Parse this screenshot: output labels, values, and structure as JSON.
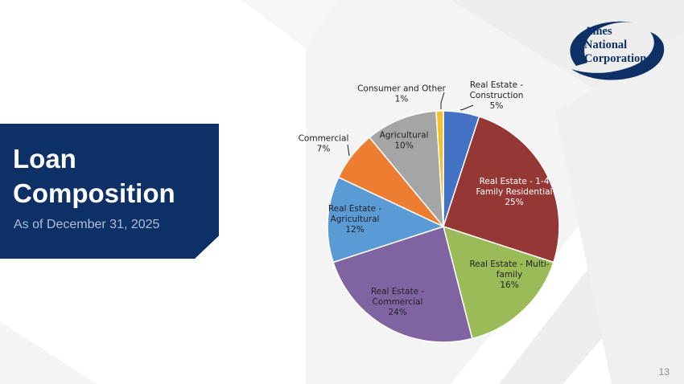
{
  "title": {
    "line1": "Loan",
    "line2": "Composition",
    "subtitle": "As of December 31, 2025"
  },
  "logo": {
    "line1": "Ames",
    "line2": "National",
    "line3": "Corporation",
    "color": "#0d3166"
  },
  "page_number": "13",
  "chart_data": {
    "type": "pie",
    "title": "",
    "start_angle_deg": 0,
    "direction": "clockwise",
    "slices": [
      {
        "label": "Real Estate - Construction",
        "label_lines": [
          "Real Estate -",
          "Construction",
          "5%"
        ],
        "value": 5,
        "display": "5%",
        "color": "#4472c4",
        "label_color": "#222222",
        "label_position": "outside"
      },
      {
        "label": "Real Estate - 1-4 Family Residential",
        "label_lines": [
          "Real Estate - 1-4",
          "Family Residential",
          "25%"
        ],
        "value": 25,
        "display": "25%",
        "color": "#953735",
        "label_color": "#ffffff",
        "label_position": "inside"
      },
      {
        "label": "Real Estate - Multi-family",
        "label_lines": [
          "Real Estate - Multi-",
          "family",
          "16%"
        ],
        "value": 16,
        "display": "16%",
        "color": "#9bbb59",
        "label_color": "#222222",
        "label_position": "inside"
      },
      {
        "label": "Real Estate - Commercial",
        "label_lines": [
          "Real Estate -",
          "Commercial",
          "24%"
        ],
        "value": 24,
        "display": "24%",
        "color": "#8064a2",
        "label_color": "#222222",
        "label_position": "inside"
      },
      {
        "label": "Real Estate - Agricultural",
        "label_lines": [
          "Real Estate -",
          "Agricultural",
          "12%"
        ],
        "value": 12,
        "display": "12%",
        "color": "#5b9bd5",
        "label_color": "#222222",
        "label_position": "inside"
      },
      {
        "label": "Commercial",
        "label_lines": [
          "Commercial",
          "7%"
        ],
        "value": 7,
        "display": "7%",
        "color": "#ed7d31",
        "label_color": "#222222",
        "label_position": "outside"
      },
      {
        "label": "Agricultural",
        "label_lines": [
          "Agricultural",
          "10%"
        ],
        "value": 10,
        "display": "10%",
        "color": "#a5a5a5",
        "label_color": "#222222",
        "label_position": "inside"
      },
      {
        "label": "Consumer and Other",
        "label_lines": [
          "Consumer and Other",
          "1%"
        ],
        "value": 1,
        "display": "1%",
        "color": "#f2c12e",
        "label_color": "#222222",
        "label_position": "outside"
      }
    ]
  }
}
